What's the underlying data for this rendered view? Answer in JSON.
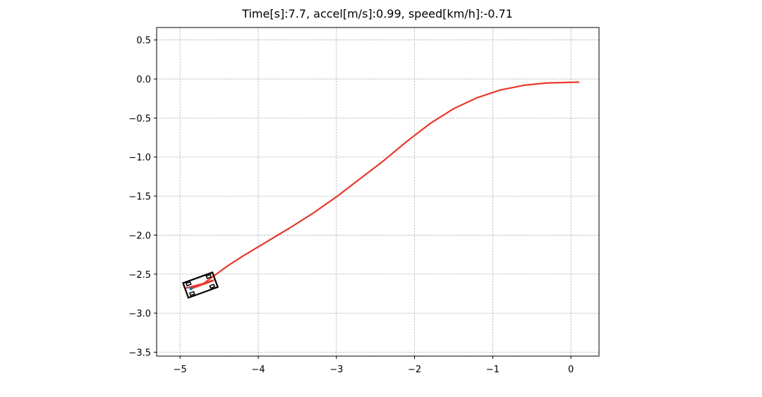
{
  "chart_data": {
    "type": "line",
    "title": "Time[s]:7.7, accel[m/s]:0.99, speed[km/h]:-0.71",
    "xlabel": "",
    "ylabel": "",
    "xlim": [
      -5.3,
      0.36
    ],
    "ylim": [
      -3.55,
      0.66
    ],
    "grid": true,
    "x_ticks": [
      {
        "value": -5,
        "label": "−5"
      },
      {
        "value": -4,
        "label": "−4"
      },
      {
        "value": -3,
        "label": "−3"
      },
      {
        "value": -2,
        "label": "−2"
      },
      {
        "value": -1,
        "label": "−1"
      },
      {
        "value": 0,
        "label": "0"
      }
    ],
    "y_ticks": [
      {
        "value": 0.5,
        "label": "0.5"
      },
      {
        "value": 0.0,
        "label": "0.0"
      },
      {
        "value": -0.5,
        "label": "−0.5"
      },
      {
        "value": -1.0,
        "label": "−1.0"
      },
      {
        "value": -1.5,
        "label": "−1.5"
      },
      {
        "value": -2.0,
        "label": "−2.0"
      },
      {
        "value": -2.5,
        "label": "−2.5"
      },
      {
        "value": -3.0,
        "label": "−3.0"
      },
      {
        "value": -3.5,
        "label": "−3.5"
      }
    ],
    "series": [
      {
        "color": "#e8392c",
        "x": [
          -4.93,
          -4.7,
          -4.55,
          -4.4,
          -4.2,
          -3.9,
          -3.6,
          -3.3,
          -3.0,
          -2.7,
          -2.4,
          -2.1,
          -1.8,
          -1.5,
          -1.2,
          -0.9,
          -0.6,
          -0.3,
          0.1
        ],
        "y": [
          -2.68,
          -2.62,
          -2.51,
          -2.4,
          -2.27,
          -2.09,
          -1.91,
          -1.72,
          -1.51,
          -1.28,
          -1.05,
          -0.8,
          -0.57,
          -0.38,
          -0.24,
          -0.14,
          -0.08,
          -0.05,
          -0.04
        ]
      }
    ],
    "vehicle": {
      "x": -4.74,
      "y": -2.64,
      "heading_deg": 20,
      "length": 0.4,
      "width": 0.2,
      "body_color": "#000000",
      "marker_color": "#1f77b4"
    }
  }
}
